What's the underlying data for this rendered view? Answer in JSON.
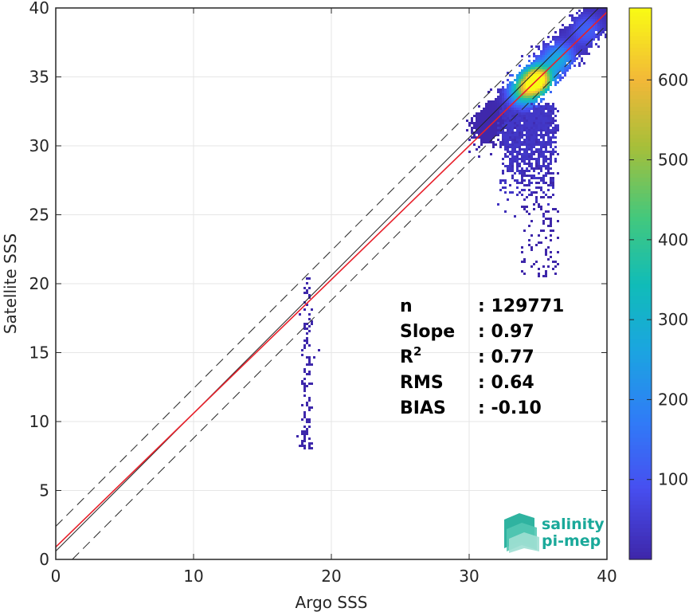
{
  "chart_data": {
    "type": "scatter",
    "subtype": "density-scatter",
    "xlabel": "Argo SSS",
    "ylabel": "Satellite SSS",
    "xlim": [
      0,
      40
    ],
    "ylim": [
      0,
      40
    ],
    "xticks": [
      0,
      10,
      20,
      30,
      40
    ],
    "yticks": [
      0,
      5,
      10,
      15,
      20,
      25,
      30,
      35,
      40
    ],
    "grid": true,
    "colorbar": {
      "colormap": "parula",
      "range": [
        0,
        690
      ],
      "ticks": [
        100,
        200,
        300,
        400,
        500,
        600
      ],
      "placement": "right"
    },
    "reference_lines": [
      {
        "name": "one-to-one",
        "color": "#262626",
        "style": "solid",
        "slope": 1,
        "intercept": 0.6
      },
      {
        "name": "upper-bound",
        "color": "#262626",
        "style": "dashed",
        "slope": 1,
        "intercept": 2.4
      },
      {
        "name": "lower-bound",
        "color": "#262626",
        "style": "dashed",
        "slope": 1,
        "intercept": -1.2
      },
      {
        "name": "fit",
        "color": "#e8202a",
        "style": "solid",
        "slope": 0.97,
        "intercept": 0.9
      }
    ],
    "density_clusters": [
      {
        "x": 35.0,
        "y": 34.8,
        "peak": 690
      },
      {
        "x": 34.0,
        "y": 34.0,
        "peak": 420
      },
      {
        "x": 36.5,
        "y": 36.3,
        "peak": 260
      },
      {
        "x": 38.5,
        "y": 38.4,
        "peak": 120
      },
      {
        "x": 33.0,
        "y": 31.5,
        "peak": 60
      },
      {
        "x": 34.5,
        "y": 28.0,
        "peak": 10
      },
      {
        "x": 18.2,
        "y": 16.5,
        "peak": 8
      }
    ],
    "stats": [
      {
        "key": "n",
        "value": ": 129771"
      },
      {
        "key": "Slope",
        "value": ": 0.97"
      },
      {
        "key": "R",
        "sup": "2",
        "value": ": 0.77"
      },
      {
        "key": "RMS",
        "value": ": 0.64"
      },
      {
        "key": "BIAS",
        "value": ": -0.10"
      }
    ]
  },
  "logo": {
    "line1": "salinity",
    "line2": "pi-mep"
  }
}
